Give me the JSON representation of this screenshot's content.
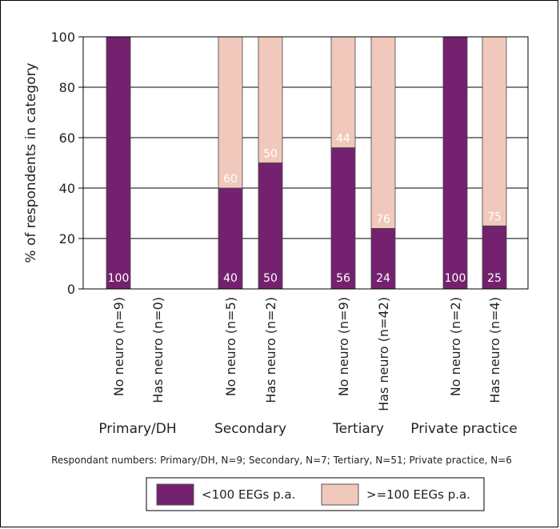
{
  "chart_data": {
    "type": "bar",
    "stacked": true,
    "ylabel": "% of respondents in category",
    "ylim": [
      0,
      100
    ],
    "yticks": [
      0,
      20,
      40,
      60,
      80,
      100
    ],
    "grid": true,
    "categories": [
      "No neuro (n=9)",
      "Has neuro (n=0)",
      "No neuro (n=5)",
      "Has neuro (n=2)",
      "No neuro (n=9)",
      "Has neuro (n=42)",
      "No neuro (n=2)",
      "Has neuro (n=4)"
    ],
    "groups": [
      "Primary/DH",
      "Secondary",
      "Tertiary",
      "Private practice"
    ],
    "series": [
      {
        "name": "<100 EEGs p.a.",
        "color": "#74226f",
        "values": [
          100,
          null,
          40,
          50,
          56,
          24,
          100,
          25
        ],
        "labels": [
          "100",
          "",
          "40",
          "50",
          "56",
          "24",
          "100",
          "25"
        ]
      },
      {
        "name": ">=100 EEGs p.a.",
        "color": "#f1c8bc",
        "values": [
          0,
          null,
          60,
          50,
          44,
          76,
          0,
          75
        ],
        "labels": [
          "",
          "",
          "60",
          "50",
          "44",
          "76",
          "",
          "75"
        ]
      }
    ],
    "note": "Respondant numbers: Primary/DH, N=9; Secondary, N=7; Tertiary, N=51; Private practice, N=6",
    "legend_position": "bottom"
  }
}
